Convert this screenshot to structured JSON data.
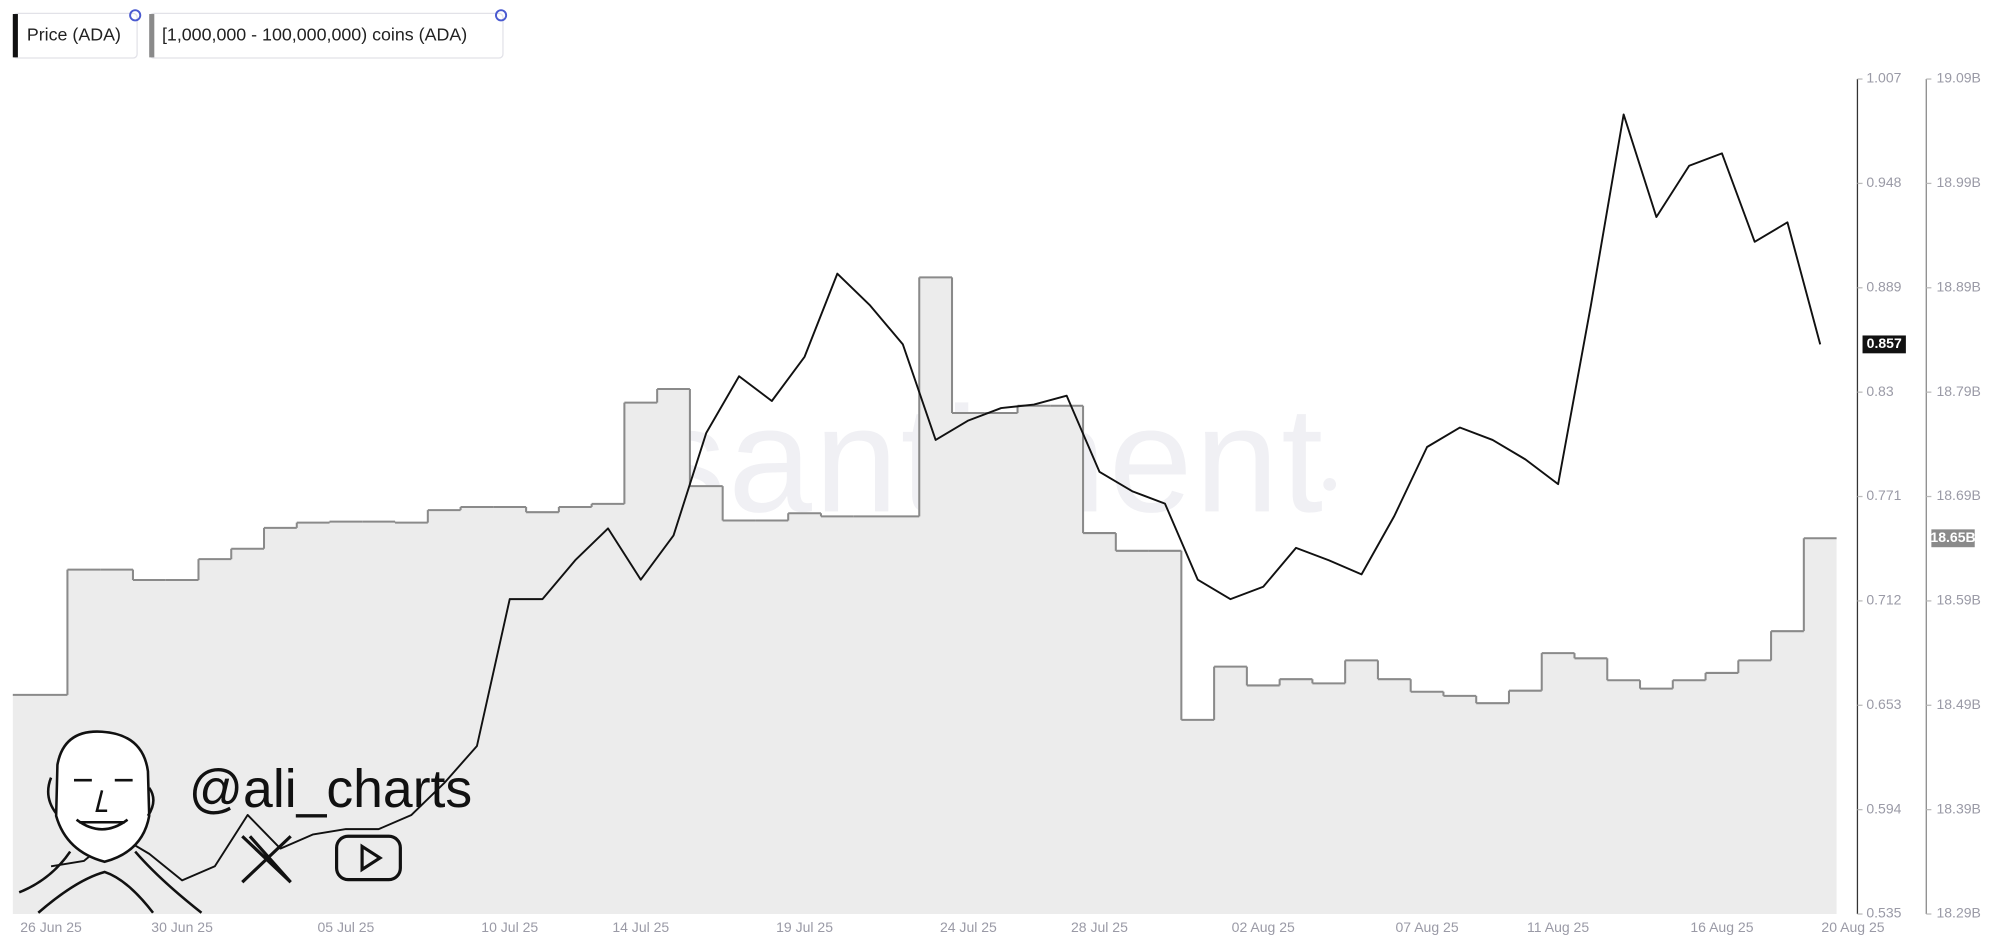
{
  "chart_data": {
    "type": "line",
    "x": [
      "26 Jun 25",
      "27 Jun 25",
      "28 Jun 25",
      "29 Jun 25",
      "30 Jun 25",
      "01 Jul 25",
      "02 Jul 25",
      "03 Jul 25",
      "04 Jul 25",
      "05 Jul 25",
      "06 Jul 25",
      "07 Jul 25",
      "08 Jul 25",
      "09 Jul 25",
      "10 Jul 25",
      "11 Jul 25",
      "12 Jul 25",
      "13 Jul 25",
      "14 Jul 25",
      "15 Jul 25",
      "16 Jul 25",
      "17 Jul 25",
      "18 Jul 25",
      "19 Jul 25",
      "20 Jul 25",
      "21 Jul 25",
      "22 Jul 25",
      "23 Jul 25",
      "24 Jul 25",
      "25 Jul 25",
      "26 Jul 25",
      "27 Jul 25",
      "28 Jul 25",
      "29 Jul 25",
      "30 Jul 25",
      "31 Jul 25",
      "01 Aug 25",
      "02 Aug 25",
      "03 Aug 25",
      "04 Aug 25",
      "05 Aug 25",
      "06 Aug 25",
      "07 Aug 25",
      "08 Aug 25",
      "09 Aug 25",
      "10 Aug 25",
      "11 Aug 25",
      "12 Aug 25",
      "13 Aug 25",
      "14 Aug 25",
      "15 Aug 25",
      "16 Aug 25",
      "17 Aug 25",
      "18 Aug 25",
      "19 Aug 25",
      "20 Aug 25"
    ],
    "xticks": [
      "26 Jun 25",
      "30 Jun 25",
      "05 Jul 25",
      "10 Jul 25",
      "14 Jul 25",
      "19 Jul 25",
      "24 Jul 25",
      "28 Jul 25",
      "02 Aug 25",
      "07 Aug 25",
      "11 Aug 25",
      "16 Aug 25",
      "20 Aug 25"
    ],
    "series": [
      {
        "name": "Price (ADA)",
        "color": "#111111",
        "axis": "y",
        "last_label": "0.857",
        "values": [
          0.562,
          0.565,
          0.58,
          0.569,
          0.554,
          0.562,
          0.591,
          0.572,
          0.58,
          0.583,
          0.583,
          0.591,
          0.609,
          0.63,
          0.713,
          0.713,
          0.735,
          0.753,
          0.724,
          0.749,
          0.807,
          0.839,
          0.825,
          0.85,
          0.897,
          0.879,
          0.857,
          0.803,
          0.814,
          0.821,
          0.823,
          0.828,
          0.785,
          0.774,
          0.767,
          0.724,
          0.713,
          0.72,
          0.742,
          0.735,
          0.727,
          0.76,
          0.799,
          0.81,
          0.803,
          0.792,
          0.778,
          0.879,
          0.987,
          0.929,
          0.958,
          0.965,
          0.915,
          0.926,
          0.857,
          null
        ]
      },
      {
        "name": "[1,000,000 - 100,000,000) coins (ADA)",
        "color": "#8a8a8a",
        "axis": "y2",
        "last_label": "18.65B",
        "values": [
          18.5,
          18.62,
          18.62,
          18.61,
          18.61,
          18.63,
          18.64,
          18.66,
          18.665,
          18.666,
          18.666,
          18.665,
          18.677,
          18.68,
          18.68,
          18.675,
          18.68,
          18.683,
          18.78,
          18.793,
          18.7,
          18.667,
          18.667,
          18.674,
          18.671,
          18.671,
          18.671,
          18.9,
          18.77,
          18.77,
          18.777,
          18.777,
          18.655,
          18.638,
          18.638,
          18.476,
          18.527,
          18.509,
          18.515,
          18.511,
          18.533,
          18.515,
          18.503,
          18.499,
          18.492,
          18.504,
          18.54,
          18.535,
          18.514,
          18.506,
          18.514,
          18.521,
          18.533,
          18.561,
          18.65,
          null
        ]
      }
    ],
    "ylim": [
      0.535,
      1.007
    ],
    "yticks": [
      1.007,
      0.948,
      0.889,
      0.83,
      0.771,
      0.712,
      0.653,
      0.594,
      0.535
    ],
    "y2lim": [
      18.29,
      19.09
    ],
    "y2ticks": [
      {
        "value": 19.09,
        "label": "19.09B"
      },
      {
        "value": 18.99,
        "label": "18.99B"
      },
      {
        "value": 18.89,
        "label": "18.89B"
      },
      {
        "value": 18.79,
        "label": "18.79B"
      },
      {
        "value": 18.69,
        "label": "18.69B"
      },
      {
        "value": 18.59,
        "label": "18.59B"
      },
      {
        "value": 18.49,
        "label": "18.49B"
      },
      {
        "value": 18.39,
        "label": "18.39B"
      },
      {
        "value": 18.29,
        "label": "18.29B"
      }
    ],
    "watermark": "santiment",
    "annotations": [
      "@ali_charts"
    ]
  }
}
